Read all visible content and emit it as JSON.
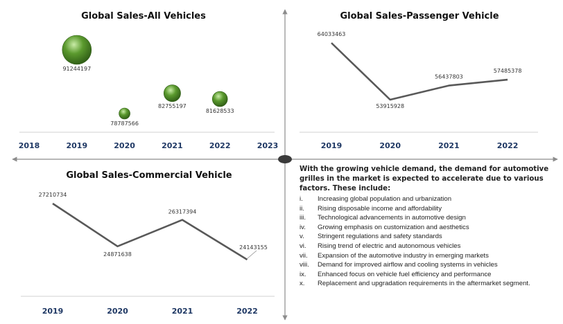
{
  "colors": {
    "line": "#595959",
    "axis_label": "#1f3864",
    "bubble_dark": "#2f5d16",
    "bubble_mid": "#5b9a2e",
    "bubble_light": "#c9eca7",
    "divider": "#8c8c8c",
    "center_dot": "#3a3a3a"
  },
  "chart_data": [
    {
      "type": "bubble",
      "title": "Global Sales-All Vehicles",
      "categories": [
        "2018",
        "2019",
        "2020",
        "2021",
        "2022",
        "2023"
      ],
      "points": [
        {
          "x": "2019",
          "value": 91244197,
          "label": "91244197"
        },
        {
          "x": "2020",
          "value": 78787566,
          "label": "78787566"
        },
        {
          "x": "2021",
          "value": 82755197,
          "label": "82755197"
        },
        {
          "x": "2022",
          "value": 81628533,
          "label": "81628533"
        }
      ]
    },
    {
      "type": "line",
      "title": "Global Sales-Passenger Vehicle",
      "categories": [
        "2019",
        "2020",
        "2021",
        "2022"
      ],
      "values": [
        64033463,
        53915928,
        56437803,
        57485378
      ],
      "labels": [
        "64033463",
        "53915928",
        "56437803",
        "57485378"
      ]
    },
    {
      "type": "line",
      "title": "Global Sales-Commercial Vehicle",
      "categories": [
        "2019",
        "2020",
        "2021",
        "2022"
      ],
      "values": [
        27210734,
        24871638,
        26317394,
        24143155
      ],
      "labels": [
        "27210734",
        "24871638",
        "26317394",
        "24143155"
      ]
    }
  ],
  "factors": {
    "intro": "With the growing vehicle demand, the demand for automotive grilles in the market is expected to accelerate due to various factors. These include:",
    "items": [
      {
        "num": "i.",
        "text": "Increasing global population and urbanization"
      },
      {
        "num": "ii.",
        "text": "Rising disposable income and affordability"
      },
      {
        "num": "iii.",
        "text": "Technological advancements in automotive design"
      },
      {
        "num": "iv.",
        "text": "Growing emphasis on customization and aesthetics"
      },
      {
        "num": "v.",
        "text": "Stringent regulations and safety standards"
      },
      {
        "num": "vi.",
        "text": "Rising trend of electric and autonomous vehicles"
      },
      {
        "num": "vii.",
        "text": "Expansion of the automotive industry in emerging markets"
      },
      {
        "num": "viii.",
        "text": "Demand for improved airflow and cooling systems in vehicles"
      },
      {
        "num": "ix.",
        "text": "Enhanced focus on vehicle fuel efficiency and performance"
      },
      {
        "num": "x.",
        "text": "Replacement and upgradation requirements in the aftermarket segment."
      }
    ]
  }
}
